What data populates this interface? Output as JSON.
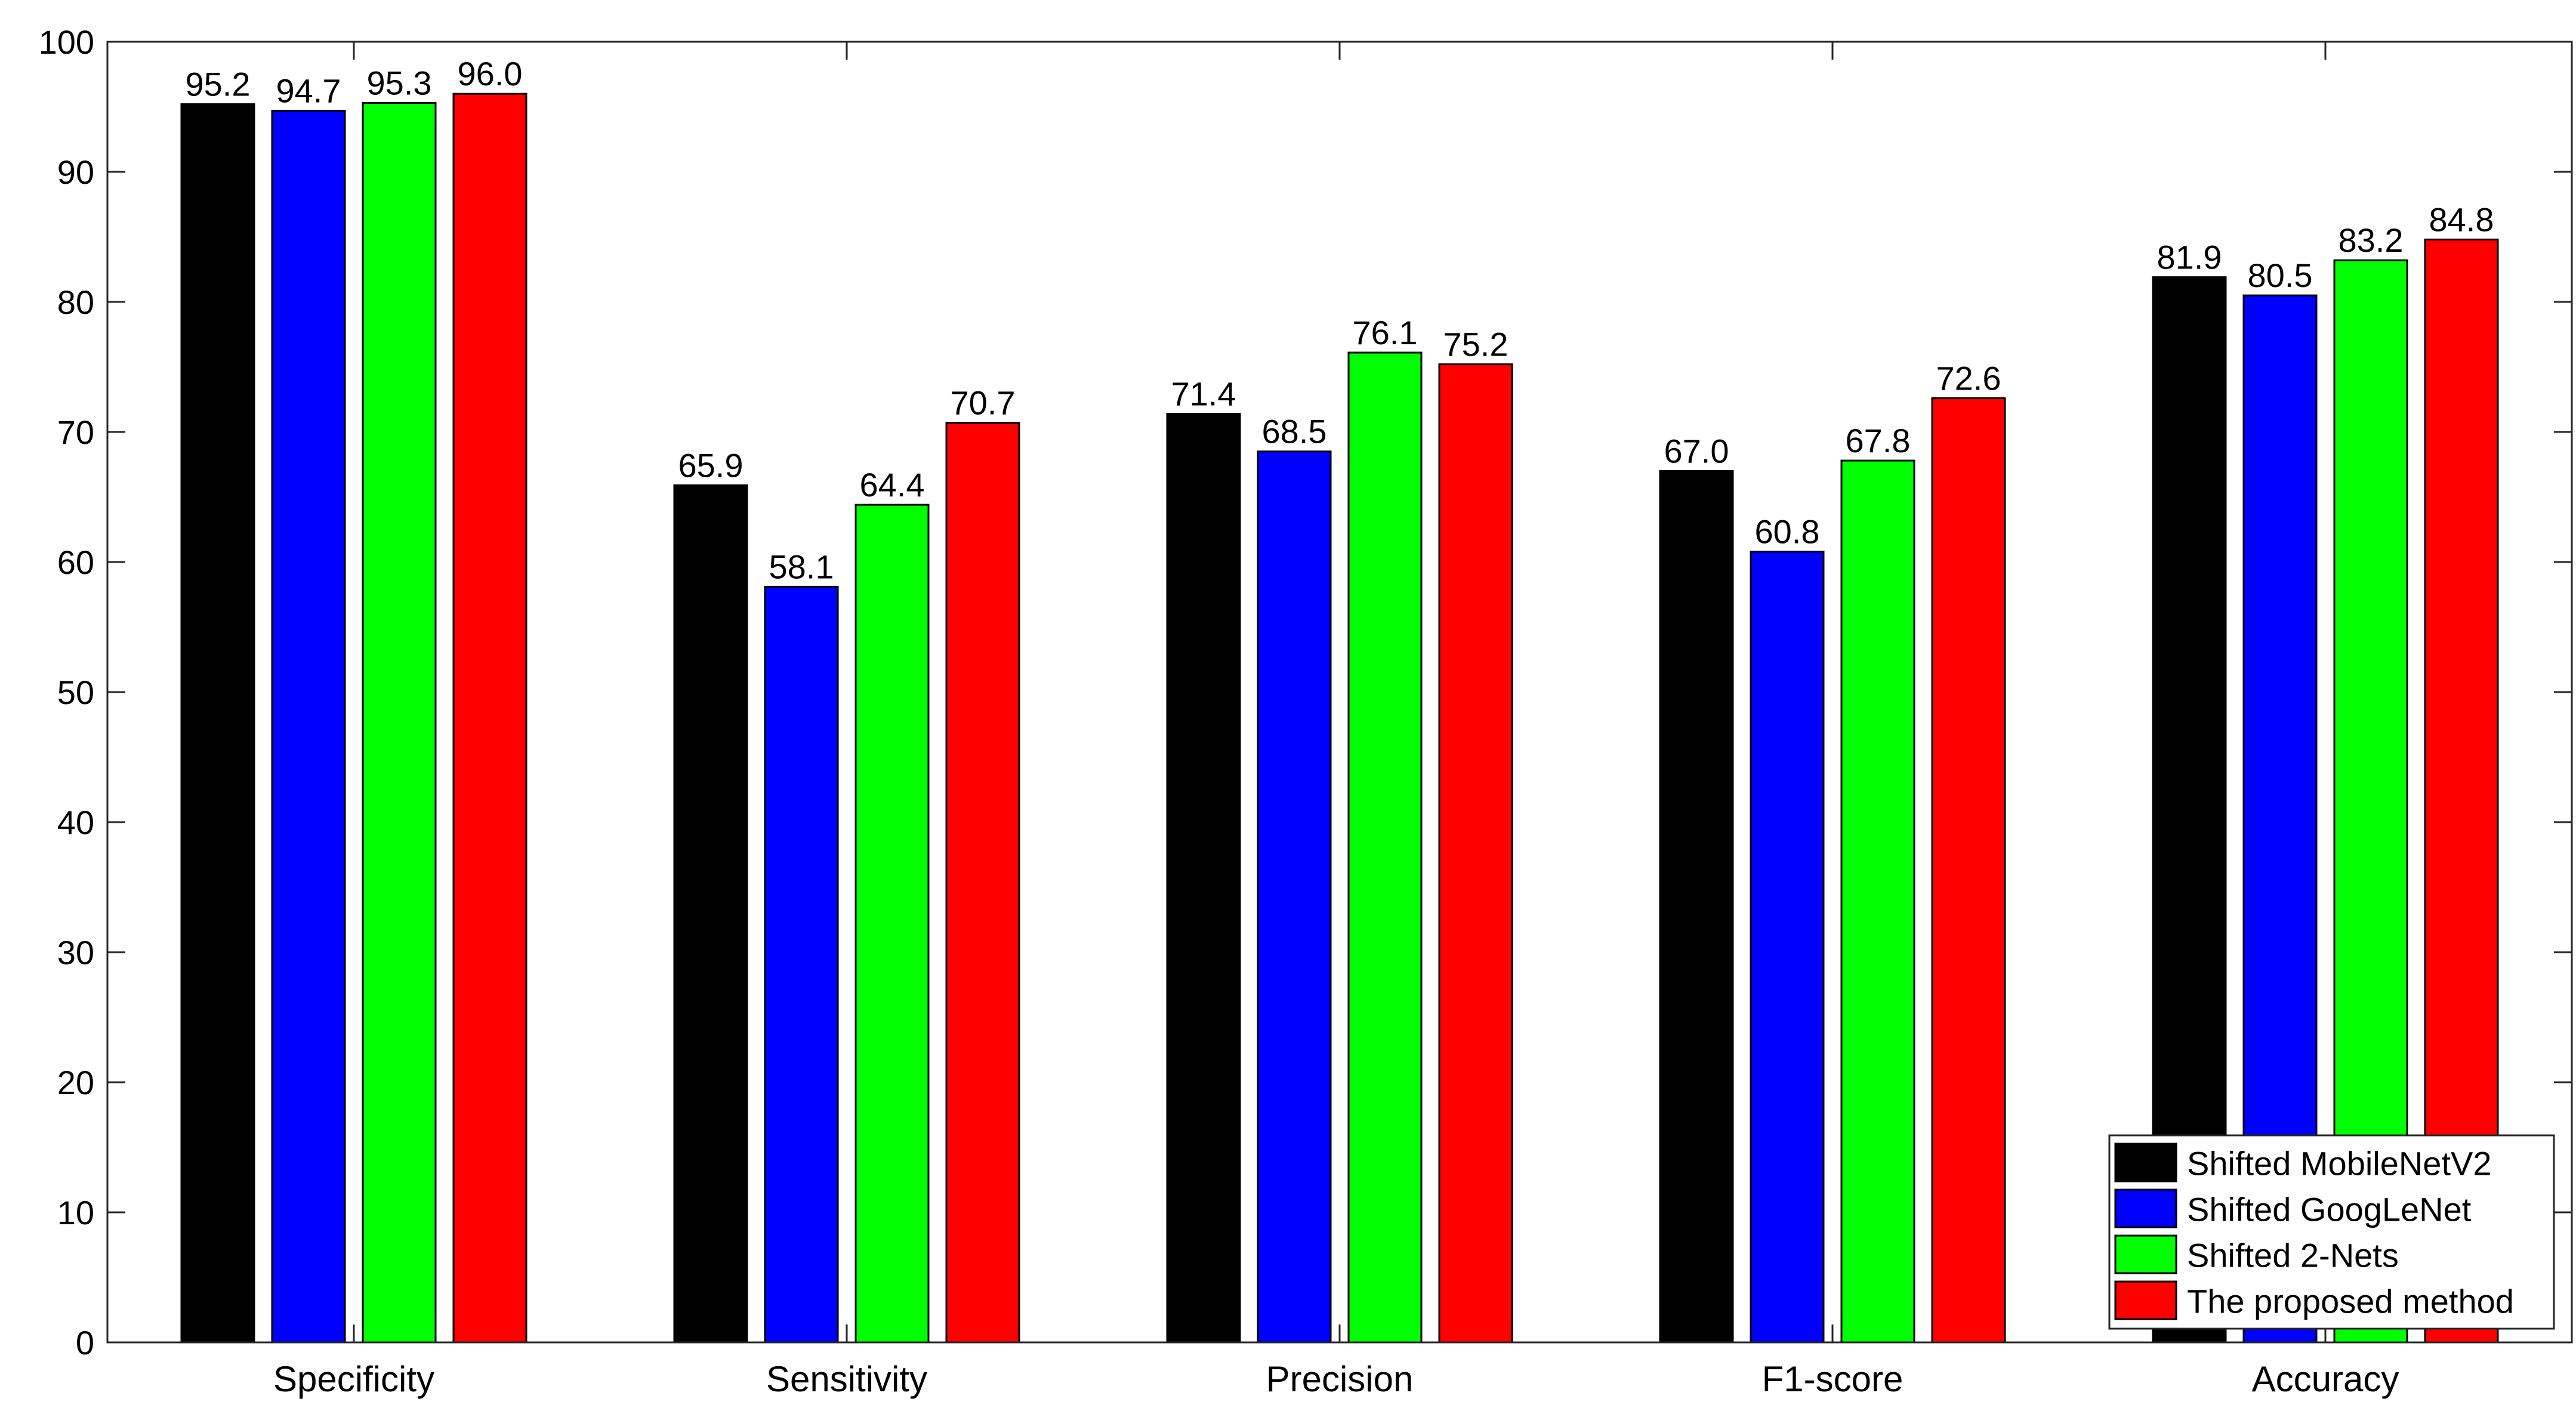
{
  "chart_data": {
    "type": "bar",
    "title": "",
    "xlabel": "",
    "ylabel": "",
    "ylim": [
      0,
      100
    ],
    "yticks": [
      0,
      10,
      20,
      30,
      40,
      50,
      60,
      70,
      80,
      90,
      100
    ],
    "grid": false,
    "legend_position": "bottom-right",
    "categories": [
      "Specificity",
      "Sensitivity",
      "Precision",
      "F1-score",
      "Accuracy"
    ],
    "series": [
      {
        "name": "Shifted MobileNetV2",
        "color": "#000000",
        "values": [
          95.2,
          65.9,
          71.4,
          67.0,
          81.9
        ],
        "labels": [
          "95.2",
          "65.9",
          "71.4",
          "67.0",
          "81.9"
        ]
      },
      {
        "name": "Shifted GoogLeNet",
        "color": "#0000ff",
        "values": [
          94.7,
          58.1,
          68.5,
          60.8,
          80.5
        ],
        "labels": [
          "94.7",
          "58.1",
          "68.5",
          "60.8",
          "80.5"
        ]
      },
      {
        "name": "Shifted 2-Nets",
        "color": "#00ff00",
        "values": [
          95.3,
          64.4,
          76.1,
          67.8,
          83.2
        ],
        "labels": [
          "95.3",
          "64.4",
          "76.1",
          "67.8",
          "83.2"
        ]
      },
      {
        "name": "The proposed method",
        "color": "#ff0000",
        "values": [
          96.0,
          70.7,
          75.2,
          72.6,
          84.8
        ],
        "labels": [
          "96.0",
          "70.7",
          "75.2",
          "72.6",
          "84.8"
        ]
      }
    ]
  }
}
